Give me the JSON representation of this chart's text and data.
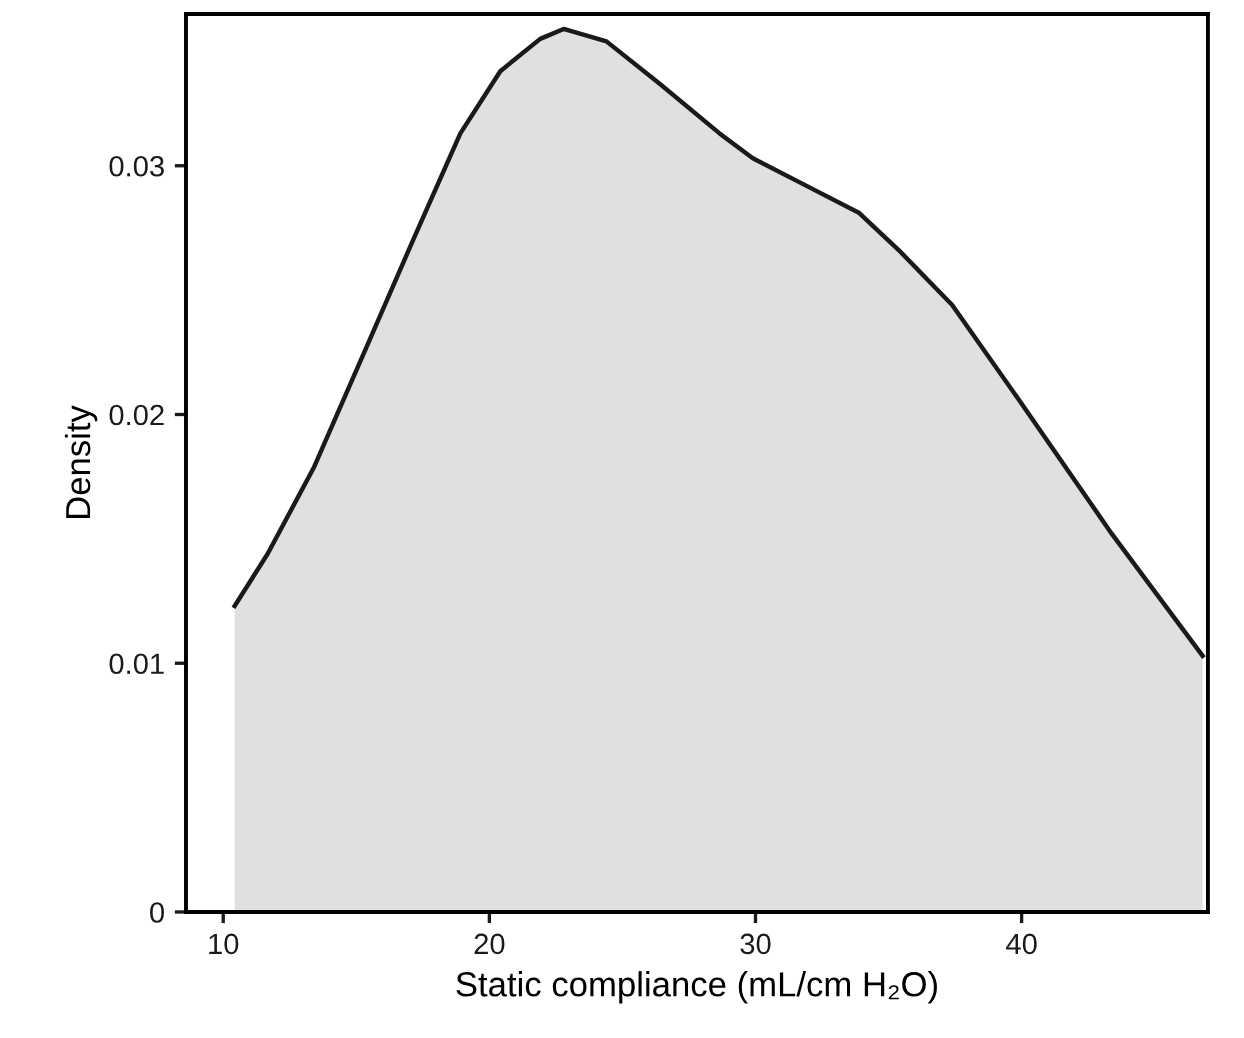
{
  "chart_data": {
    "type": "area",
    "xlabel": "Static compliance (mL/cm H₂O)",
    "ylabel": "Density",
    "x": [
      10.43,
      11.67,
      13.42,
      15.42,
      17.17,
      18.91,
      20.41,
      21.91,
      22.79,
      24.4,
      26.4,
      28.65,
      29.9,
      31.9,
      33.9,
      35.39,
      37.39,
      39.89,
      43.39,
      46.8
    ],
    "series": [
      {
        "color": "#dfe0e2",
        "values": [
          0.0123,
          0.0144,
          0.0179,
          0.0228,
          0.0271,
          0.0313,
          0.0338,
          0.0351,
          0.0355,
          0.035,
          0.0333,
          0.0313,
          0.0303,
          0.0292,
          0.0281,
          0.0266,
          0.0244,
          0.0206,
          0.0152,
          0.0103
        ]
      }
    ],
    "xlim": [
      8.6,
      47.0
    ],
    "ylim": [
      0,
      0.0361
    ],
    "xticks": [
      10,
      20,
      30,
      40
    ],
    "yticks": [
      0,
      0.01,
      0.02,
      0.03
    ],
    "grid": false,
    "legend": false
  }
}
